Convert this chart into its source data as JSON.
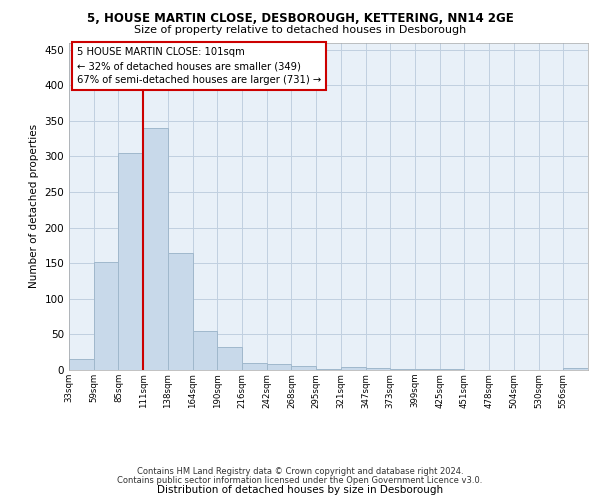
{
  "title_line1": "5, HOUSE MARTIN CLOSE, DESBOROUGH, KETTERING, NN14 2GE",
  "title_line2": "Size of property relative to detached houses in Desborough",
  "xlabel": "Distribution of detached houses by size in Desborough",
  "ylabel": "Number of detached properties",
  "footer_line1": "Contains HM Land Registry data © Crown copyright and database right 2024.",
  "footer_line2": "Contains public sector information licensed under the Open Government Licence v3.0.",
  "bin_labels": [
    "33sqm",
    "59sqm",
    "85sqm",
    "111sqm",
    "138sqm",
    "164sqm",
    "190sqm",
    "216sqm",
    "242sqm",
    "268sqm",
    "295sqm",
    "321sqm",
    "347sqm",
    "373sqm",
    "399sqm",
    "425sqm",
    "451sqm",
    "478sqm",
    "504sqm",
    "530sqm",
    "556sqm"
  ],
  "bar_values": [
    15,
    152,
    305,
    340,
    165,
    55,
    33,
    10,
    8,
    5,
    1,
    4,
    3,
    2,
    1,
    1,
    0,
    0,
    0,
    0,
    3
  ],
  "bar_color": "#c8d9ea",
  "bar_edge_color": "#a0b8cc",
  "grid_color": "#c8d9ea",
  "background_color": "#e8f0f8",
  "vline_x": 3,
  "vline_color": "#cc0000",
  "annotation_text": "5 HOUSE MARTIN CLOSE: 101sqm\n← 32% of detached houses are smaller (349)\n67% of semi-detached houses are larger (731) →",
  "annotation_box_color": "#ffffff",
  "annotation_box_edge_color": "#cc0000",
  "ylim": [
    0,
    460
  ],
  "yticks": [
    0,
    50,
    100,
    150,
    200,
    250,
    300,
    350,
    400,
    450
  ]
}
